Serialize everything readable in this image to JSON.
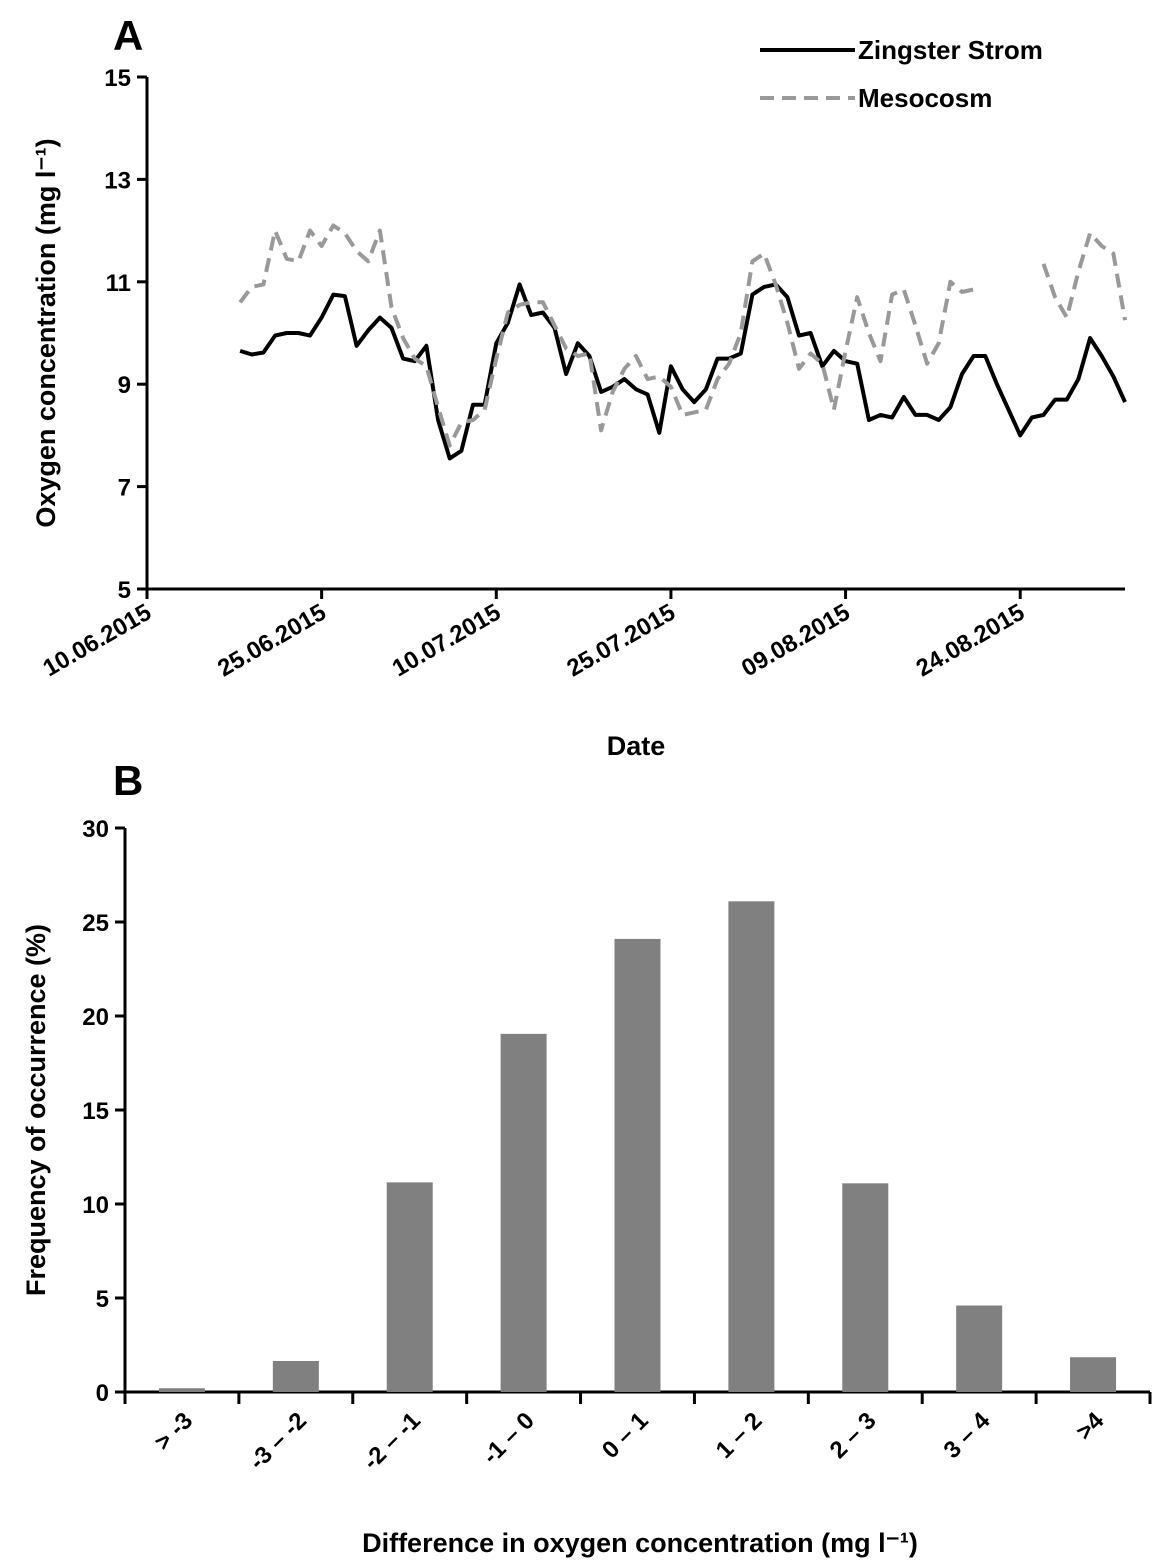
{
  "chart_data": [
    {
      "type": "line",
      "panel_label": "A",
      "x_label": "Date",
      "y_label": "Oxygen concentration (mg l⁻¹)",
      "xlim": [
        "2015-06-10",
        "2015-09-02"
      ],
      "xticks": [
        {
          "value": "2015-06-10",
          "label": "10.06.2015"
        },
        {
          "value": "2015-06-25",
          "label": "25.06.2015"
        },
        {
          "value": "2015-07-10",
          "label": "10.07.2015"
        },
        {
          "value": "2015-07-25",
          "label": "25.07.2015"
        },
        {
          "value": "2015-08-09",
          "label": "09.08.2015"
        },
        {
          "value": "2015-08-24",
          "label": "24.08.2015"
        }
      ],
      "ylim": [
        5,
        15
      ],
      "yticks": [
        5,
        7,
        9,
        11,
        13,
        15
      ],
      "legend": "upper right",
      "x": [
        "2015-06-18",
        "2015-06-19",
        "2015-06-20",
        "2015-06-21",
        "2015-06-22",
        "2015-06-23",
        "2015-06-24",
        "2015-06-25",
        "2015-06-26",
        "2015-06-27",
        "2015-06-28",
        "2015-06-29",
        "2015-06-30",
        "2015-07-01",
        "2015-07-02",
        "2015-07-03",
        "2015-07-04",
        "2015-07-05",
        "2015-07-06",
        "2015-07-07",
        "2015-07-08",
        "2015-07-09",
        "2015-07-10",
        "2015-07-11",
        "2015-07-12",
        "2015-07-13",
        "2015-07-14",
        "2015-07-15",
        "2015-07-16",
        "2015-07-17",
        "2015-07-18",
        "2015-07-19",
        "2015-07-20",
        "2015-07-21",
        "2015-07-22",
        "2015-07-23",
        "2015-07-24",
        "2015-07-25",
        "2015-07-26",
        "2015-07-27",
        "2015-07-28",
        "2015-07-29",
        "2015-07-30",
        "2015-07-31",
        "2015-08-01",
        "2015-08-02",
        "2015-08-03",
        "2015-08-04",
        "2015-08-05",
        "2015-08-06",
        "2015-08-07",
        "2015-08-08",
        "2015-08-09",
        "2015-08-10",
        "2015-08-11",
        "2015-08-12",
        "2015-08-13",
        "2015-08-14",
        "2015-08-15",
        "2015-08-16",
        "2015-08-17",
        "2015-08-18",
        "2015-08-19",
        "2015-08-20",
        "2015-08-21",
        "2015-08-22",
        "2015-08-23",
        "2015-08-24",
        "2015-08-25",
        "2015-08-26",
        "2015-08-27",
        "2015-08-28",
        "2015-08-29",
        "2015-08-30",
        "2015-08-31",
        "2015-09-01",
        "2015-09-02"
      ],
      "series": [
        {
          "name": "Zingster Strom",
          "color": "#000000",
          "line_style": "solid",
          "values": [
            9.65,
            9.58,
            9.62,
            9.95,
            10.0,
            10.0,
            9.95,
            10.3,
            10.75,
            10.72,
            9.75,
            10.05,
            10.3,
            10.1,
            9.5,
            9.45,
            9.75,
            8.3,
            7.55,
            7.7,
            8.6,
            8.6,
            9.8,
            10.2,
            10.95,
            10.35,
            10.4,
            10.1,
            9.2,
            9.8,
            9.55,
            8.85,
            8.95,
            9.1,
            8.9,
            8.8,
            8.05,
            9.35,
            8.9,
            8.65,
            8.9,
            9.5,
            9.5,
            9.6,
            10.75,
            10.9,
            10.95,
            10.7,
            9.95,
            10.0,
            9.35,
            9.65,
            9.45,
            9.4,
            8.3,
            8.4,
            8.35,
            8.75,
            8.4,
            8.4,
            8.3,
            8.55,
            9.2,
            9.55,
            9.55,
            9.0,
            8.5,
            8.0,
            8.35,
            8.4,
            8.7,
            8.7,
            9.1,
            9.9,
            9.55,
            9.15,
            8.65
          ]
        },
        {
          "name": "Mesocosm",
          "color": "#999999",
          "line_style": "dashed",
          "values": [
            10.6,
            10.9,
            10.95,
            12.0,
            11.45,
            11.4,
            12.0,
            11.7,
            12.1,
            11.95,
            11.6,
            11.4,
            12.0,
            10.5,
            9.9,
            9.5,
            9.35,
            8.55,
            7.8,
            8.25,
            8.3,
            8.5,
            9.5,
            10.4,
            10.55,
            10.6,
            10.6,
            10.15,
            9.7,
            9.55,
            9.6,
            8.1,
            8.85,
            9.3,
            9.55,
            9.1,
            9.15,
            8.95,
            8.4,
            8.45,
            8.5,
            9.1,
            9.4,
            10.0,
            11.4,
            11.55,
            10.95,
            10.2,
            9.3,
            9.6,
            9.4,
            8.5,
            9.65,
            10.7,
            10.0,
            9.45,
            10.75,
            10.85,
            10.15,
            9.4,
            9.8,
            11.0,
            10.8,
            10.85,
            null,
            null,
            null,
            null,
            null,
            11.35,
            10.7,
            10.3,
            11.2,
            11.95,
            11.7,
            11.55,
            10.25
          ]
        }
      ]
    },
    {
      "type": "bar",
      "panel_label": "B",
      "x_label": "Difference in oxygen concentration (mg l⁻¹)",
      "y_label": "Frequency of occurrence (%)",
      "categories": [
        "> -3",
        "-3 – -2",
        "-2 – -1",
        "-1 – 0",
        "0 – 1",
        "1 – 2",
        "2 – 3",
        "3 – 4",
        ">4"
      ],
      "values": [
        0.2,
        1.65,
        11.15,
        19.05,
        24.1,
        26.1,
        11.1,
        4.6,
        1.85
      ],
      "color": "#808080",
      "ylim": [
        0,
        30
      ],
      "yticks": [
        0,
        5,
        10,
        15,
        20,
        25,
        30
      ]
    }
  ]
}
